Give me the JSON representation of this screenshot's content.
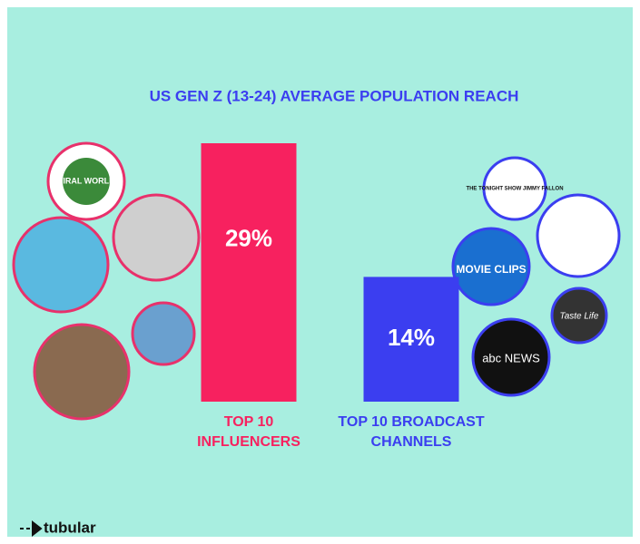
{
  "chart_data": {
    "type": "bar",
    "title": "US GEN Z (13-24) AVERAGE POPULATION REACH",
    "categories": [
      "TOP 10 INFLUENCERS",
      "TOP 10 BROADCAST CHANNELS"
    ],
    "values": [
      29,
      14
    ],
    "value_labels": [
      "29%",
      "14%"
    ],
    "colors": [
      "#f7215f",
      "#3b3ef0"
    ],
    "ylim": [
      0,
      29
    ],
    "brand": "tubular",
    "logos": [
      "VIRAL WORLD",
      "THE TONIGHT SHOW JIMMY FALLON",
      "MOVIE CLIPS",
      "abc NEWS",
      "Taste Life"
    ]
  }
}
